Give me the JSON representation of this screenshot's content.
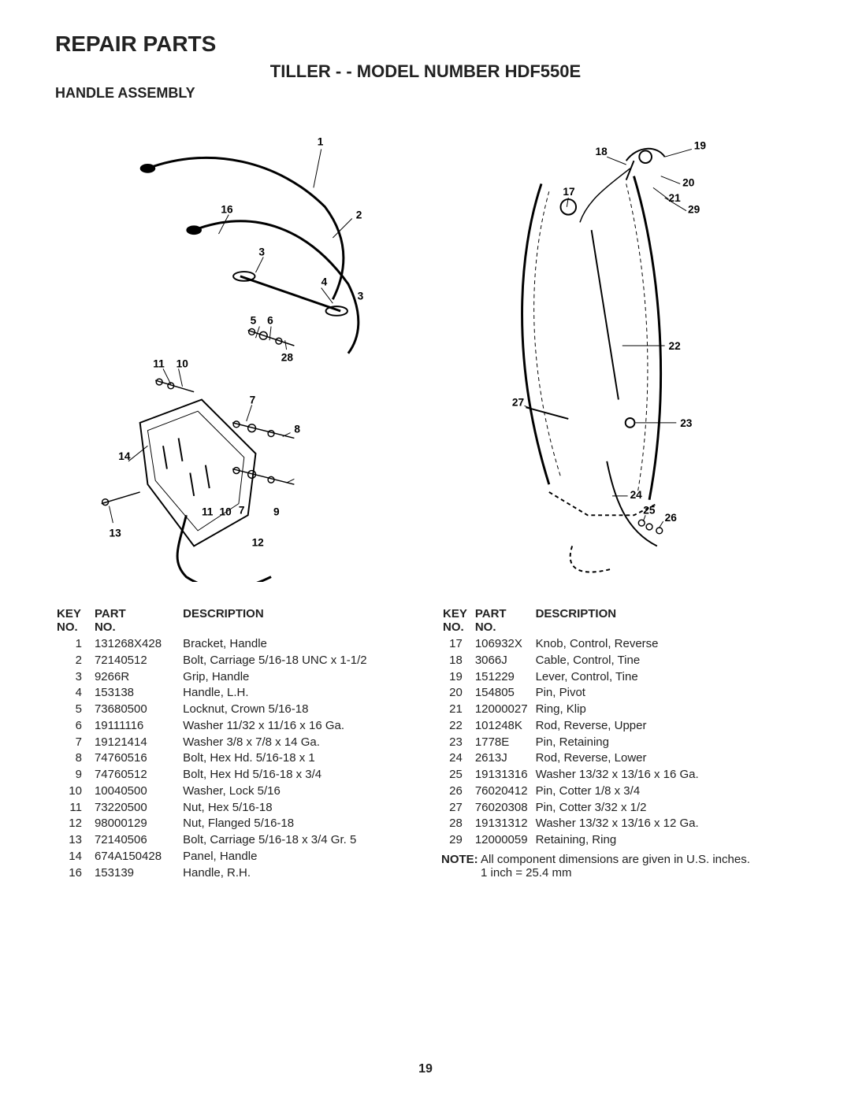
{
  "header": {
    "title": "REPAIR PARTS",
    "model": "TILLER - - MODEL NUMBER HDF550E",
    "section": "HANDLE ASSEMBLY"
  },
  "pageNumber": "19",
  "tableHeaders": {
    "keyNo": "KEY NO.",
    "partNo": "PART NO.",
    "description": "DESCRIPTION"
  },
  "partsLeft": [
    {
      "key": "1",
      "part": "131268X428",
      "desc": "Bracket, Handle"
    },
    {
      "key": "2",
      "part": "72140512",
      "desc": "Bolt, Carriage  5/16-18 UNC x 1-1/2"
    },
    {
      "key": "3",
      "part": "9266R",
      "desc": "Grip, Handle"
    },
    {
      "key": "4",
      "part": "153138",
      "desc": "Handle, L.H."
    },
    {
      "key": "5",
      "part": "73680500",
      "desc": "Locknut, Crown  5/16-18"
    },
    {
      "key": "6",
      "part": "19111116",
      "desc": "Washer  11/32 x 11/16 x 16 Ga."
    },
    {
      "key": "7",
      "part": "19121414",
      "desc": "Washer  3/8 x 7/8 x 14 Ga."
    },
    {
      "key": "8",
      "part": "74760516",
      "desc": "Bolt, Hex Hd. 5/16-18 x 1"
    },
    {
      "key": "9",
      "part": "74760512",
      "desc": "Bolt, Hex Hd 5/16-18 x 3/4"
    },
    {
      "key": "10",
      "part": "10040500",
      "desc": "Washer, Lock  5/16"
    },
    {
      "key": "11",
      "part": "73220500",
      "desc": "Nut, Hex  5/16-18"
    },
    {
      "key": "12",
      "part": "98000129",
      "desc": "Nut, Flanged  5/16-18"
    },
    {
      "key": "13",
      "part": "72140506",
      "desc": "Bolt, Carriage  5/16-18 x 3/4 Gr. 5"
    },
    {
      "key": "14",
      "part": "674A150428",
      "desc": "Panel, Handle"
    },
    {
      "key": "16",
      "part": "153139",
      "desc": "Handle, R.H."
    }
  ],
  "partsRight": [
    {
      "key": "17",
      "part": "106932X",
      "desc": "Knob, Control, Reverse"
    },
    {
      "key": "18",
      "part": "3066J",
      "desc": "Cable, Control, Tine"
    },
    {
      "key": "19",
      "part": "151229",
      "desc": "Lever, Control, Tine"
    },
    {
      "key": "20",
      "part": "154805",
      "desc": "Pin, Pivot"
    },
    {
      "key": "21",
      "part": "12000027",
      "desc": "Ring, Klip"
    },
    {
      "key": "22",
      "part": "101248K",
      "desc": "Rod, Reverse, Upper"
    },
    {
      "key": "23",
      "part": "1778E",
      "desc": "Pin, Retaining"
    },
    {
      "key": "24",
      "part": "2613J",
      "desc": "Rod, Reverse, Lower"
    },
    {
      "key": "25",
      "part": "19131316",
      "desc": "Washer  13/32 x 13/16 x 16 Ga."
    },
    {
      "key": "26",
      "part": "76020412",
      "desc": "Pin, Cotter  1/8 x 3/4"
    },
    {
      "key": "27",
      "part": "76020308",
      "desc": "Pin, Cotter  3/32 x 1/2"
    },
    {
      "key": "28",
      "part": "19131312",
      "desc": "Washer 13/32 x 13/16 x 12 Ga."
    },
    {
      "key": "29",
      "part": "12000059",
      "desc": "Retaining, Ring"
    }
  ],
  "note": {
    "label": "NOTE:",
    "text1": "All component dimensions are given in U.S. inches.",
    "text2": "1 inch = 25.4 mm"
  },
  "diagramLeft": {
    "callouts": [
      "1",
      "2",
      "3",
      "3",
      "4",
      "5",
      "6",
      "7",
      "7",
      "8",
      "9",
      "10",
      "10",
      "11",
      "11",
      "12",
      "13",
      "14",
      "16",
      "28"
    ]
  },
  "diagramRight": {
    "callouts": [
      "17",
      "18",
      "19",
      "20",
      "21",
      "22",
      "23",
      "24",
      "25",
      "26",
      "27",
      "29"
    ]
  }
}
